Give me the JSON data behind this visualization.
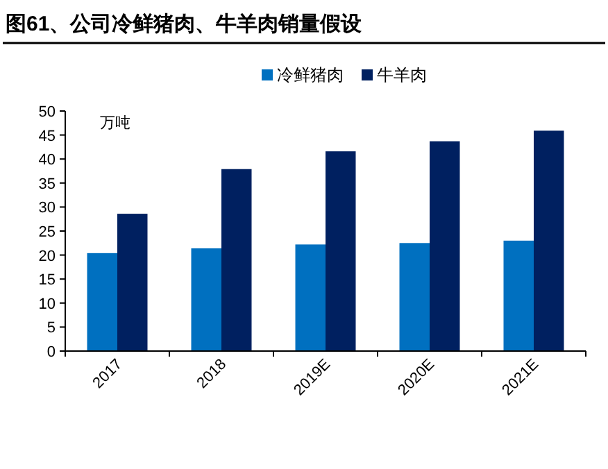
{
  "chart_data": {
    "type": "bar",
    "title": "图61、公司冷鲜猪肉、牛羊肉销量假设",
    "ylabel": "万吨",
    "categories": [
      "2017",
      "2018",
      "2019E",
      "2020E",
      "2021E"
    ],
    "series": [
      {
        "name": "冷鲜猪肉",
        "color": "#0070c0",
        "values": [
          20.4,
          21.4,
          22.2,
          22.5,
          23.0
        ]
      },
      {
        "name": "牛羊肉",
        "color": "#002060",
        "values": [
          28.6,
          37.9,
          41.6,
          43.7,
          45.9
        ]
      }
    ],
    "ylim": [
      0,
      50
    ],
    "yticks": [
      0,
      5,
      10,
      15,
      20,
      25,
      30,
      35,
      40,
      45,
      50
    ],
    "grid": false,
    "legend": "top"
  }
}
